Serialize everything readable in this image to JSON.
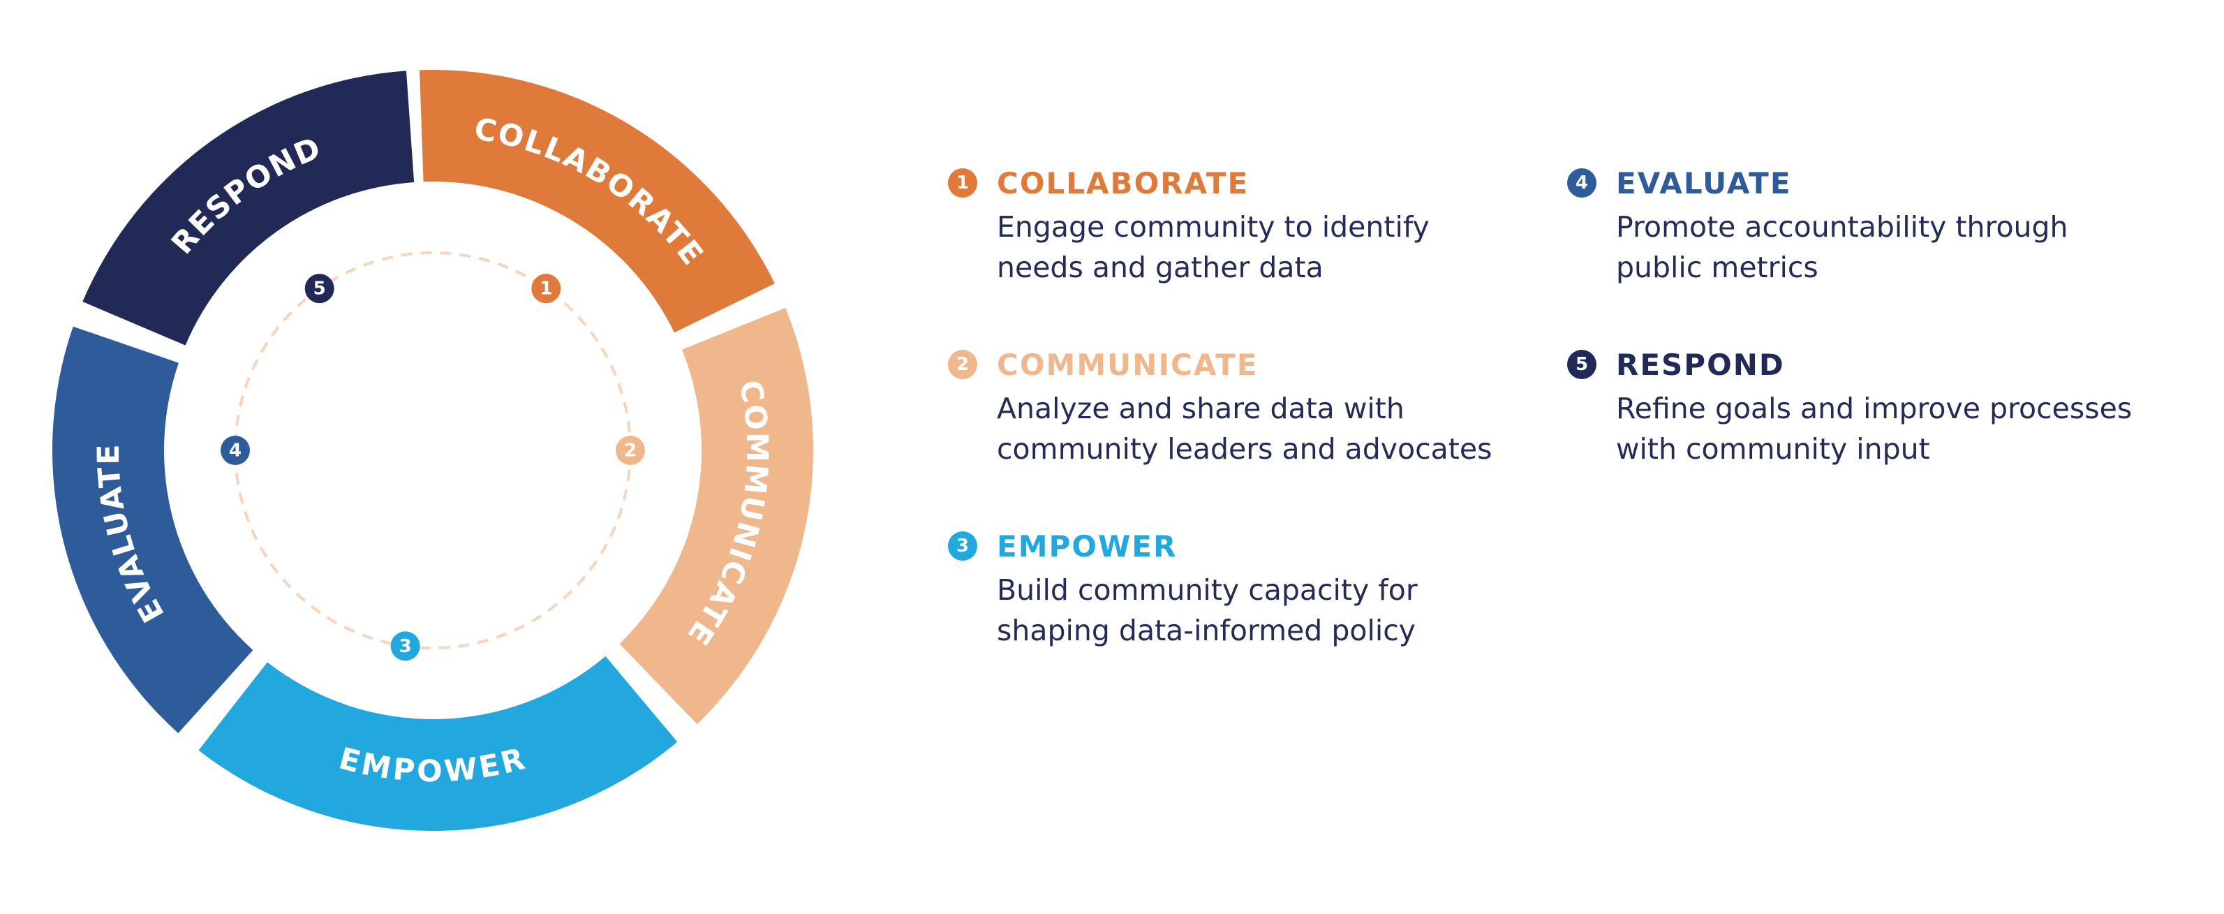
{
  "stages": [
    {
      "num": "1",
      "name": "COLLABORATE",
      "color": "#df7a3b",
      "desc": [
        "Engage community to identify",
        "needs and gather data"
      ]
    },
    {
      "num": "2",
      "name": "COMMUNICATE",
      "color": "#f0b78c",
      "desc": [
        "Analyze and share data with",
        "community leaders and advocates"
      ]
    },
    {
      "num": "3",
      "name": "EMPOWER",
      "color": "#22a7df",
      "desc": [
        "Build community capacity for",
        "shaping data-informed policy"
      ]
    },
    {
      "num": "4",
      "name": "EVALUATE",
      "color": "#2e5b9a",
      "desc": [
        "Promote accountability through",
        "public metrics"
      ]
    },
    {
      "num": "5",
      "name": "RESPOND",
      "color": "#212a57",
      "desc": [
        "Refine goals and improve processes",
        "with community input"
      ]
    }
  ],
  "colors": {
    "text": "#232b57",
    "dashed_circle": "#f6d5bc",
    "background": "#ffffff"
  }
}
